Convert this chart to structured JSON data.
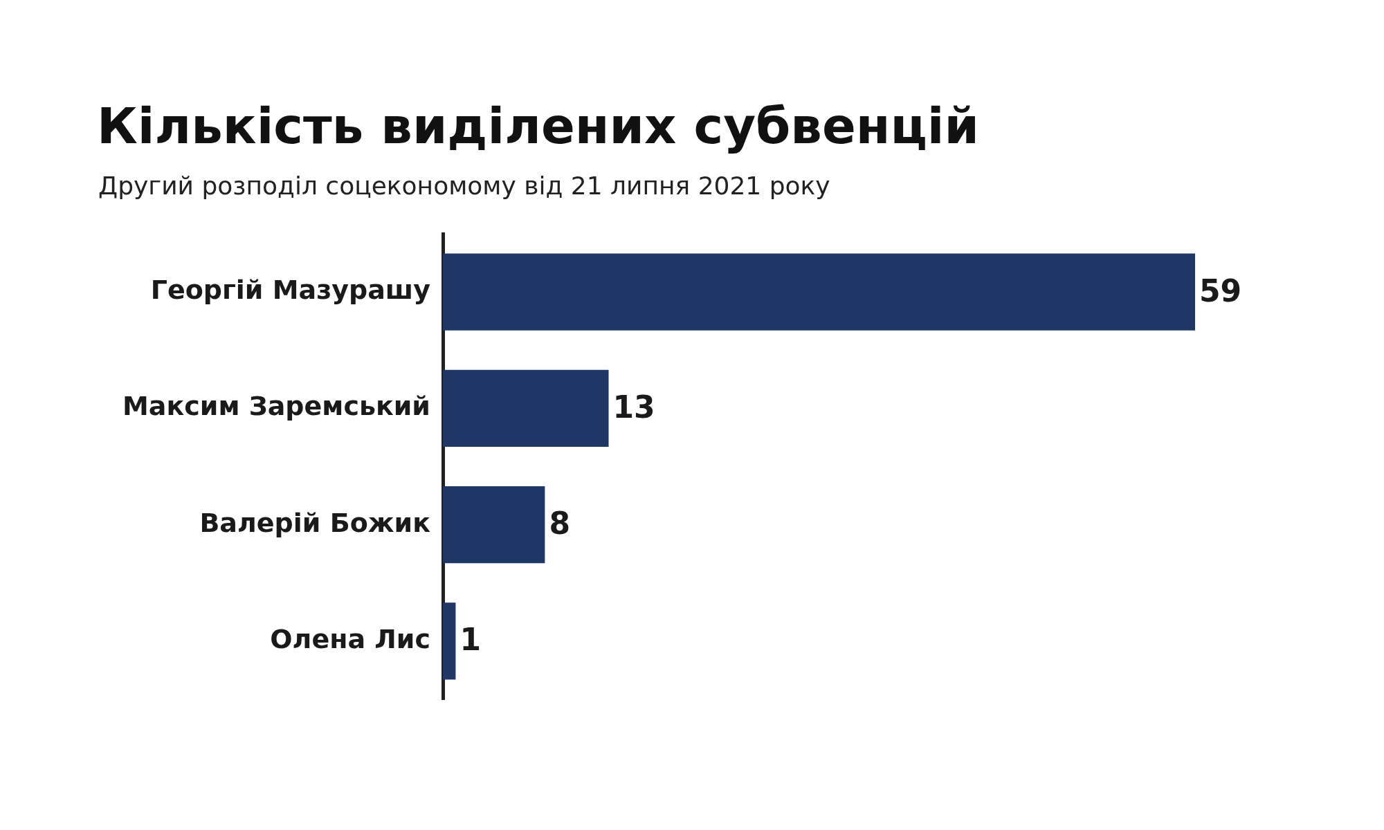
{
  "chart_data": {
    "type": "bar",
    "orientation": "horizontal",
    "title": "Кількість виділених субвенцій",
    "subtitle": "Другий розподіл соцекономому від 21 липня 2021 року",
    "categories": [
      "Георгій Мазурашу",
      "Максим Заремський",
      "Валерій Божик",
      "Олена Лис"
    ],
    "values": [
      59,
      13,
      8,
      1
    ],
    "color": "#1e3764",
    "data_labels": true
  }
}
